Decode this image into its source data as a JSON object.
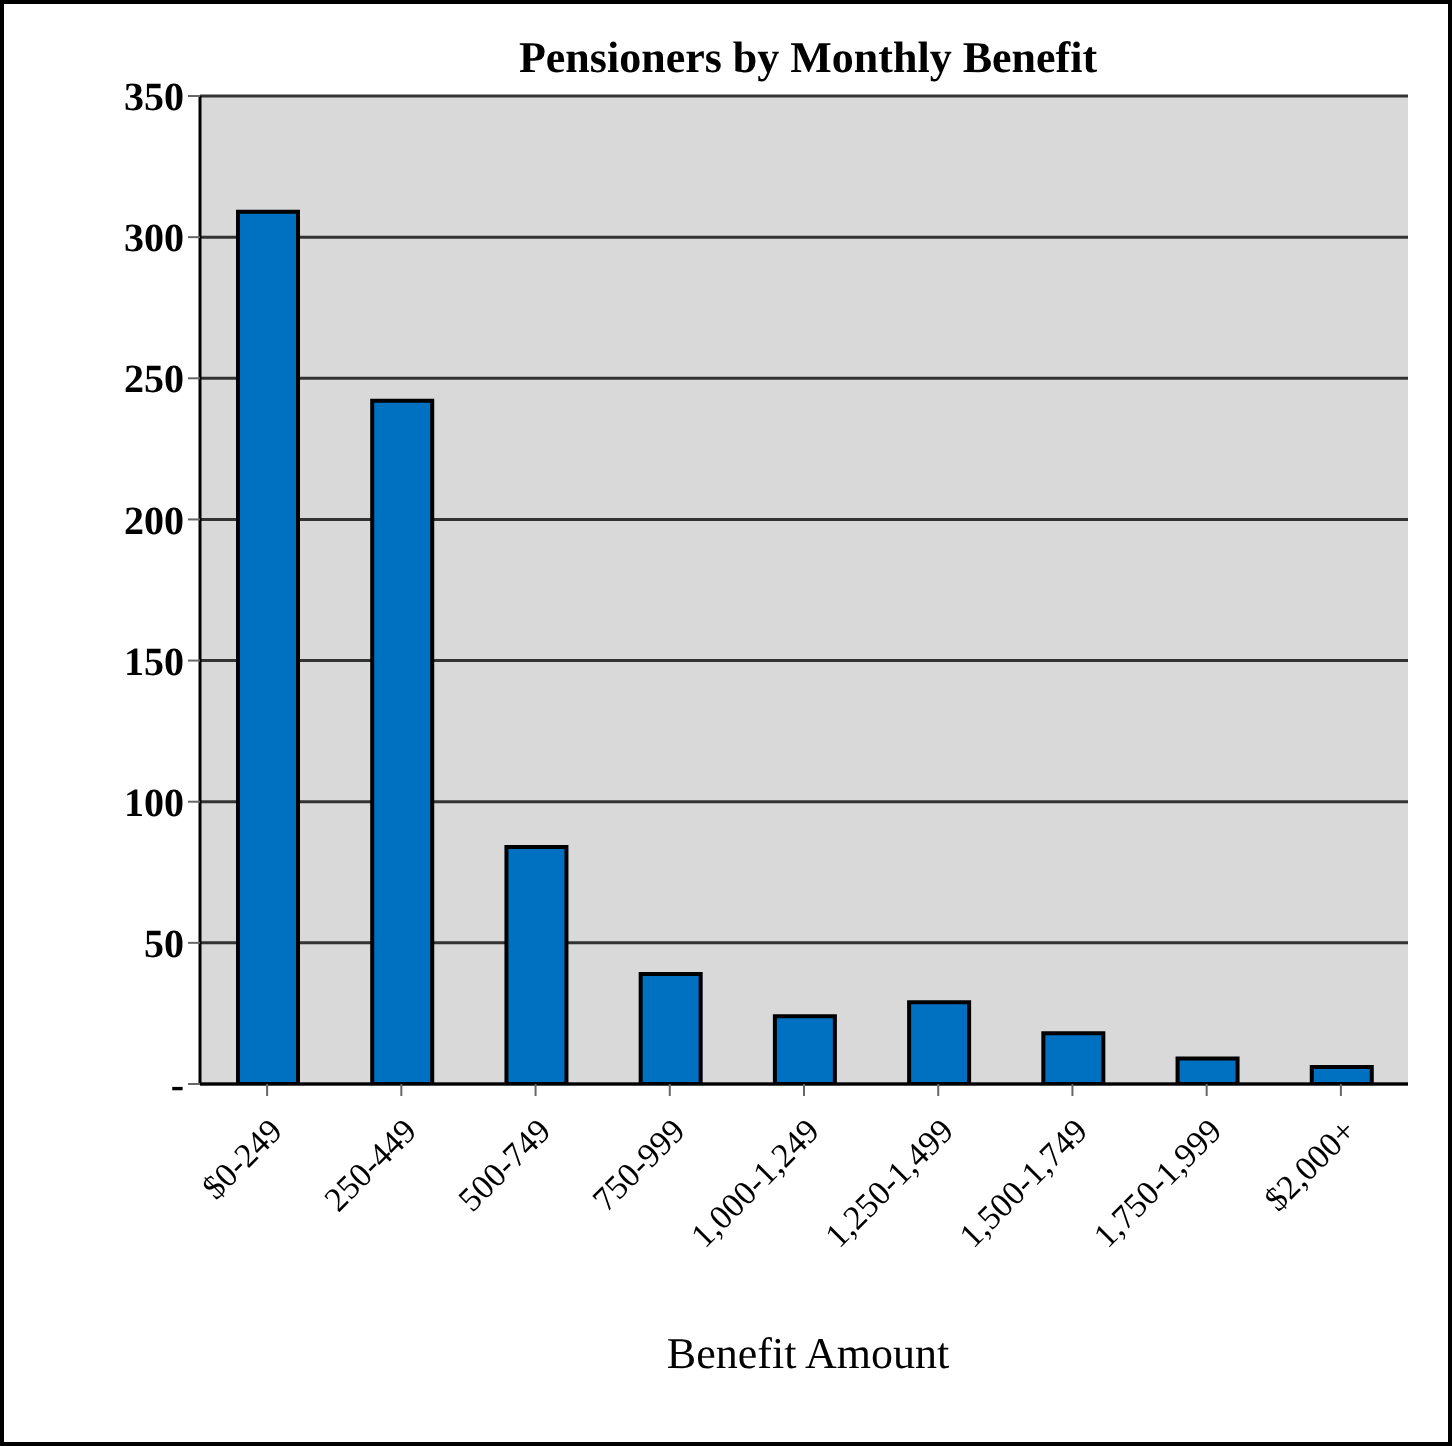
{
  "chart_data": {
    "type": "bar",
    "title": "Pensioners by Monthly Benefit",
    "xlabel": "Benefit Amount",
    "categories": [
      "$0-249",
      "250-449",
      "500-749",
      "750-999",
      "1,000-1,249",
      "1,250-1,499",
      "1,500-1,749",
      "1,750-1,999",
      "$2,000+"
    ],
    "values": [
      309,
      242,
      84,
      39,
      24,
      29,
      18,
      9,
      6
    ],
    "color": "#0070c0",
    "ylim": [
      0,
      350
    ],
    "yticks": [
      {
        "value": 0,
        "label": "-"
      },
      50,
      100,
      150,
      200,
      250,
      300,
      350
    ],
    "grid": "y"
  }
}
